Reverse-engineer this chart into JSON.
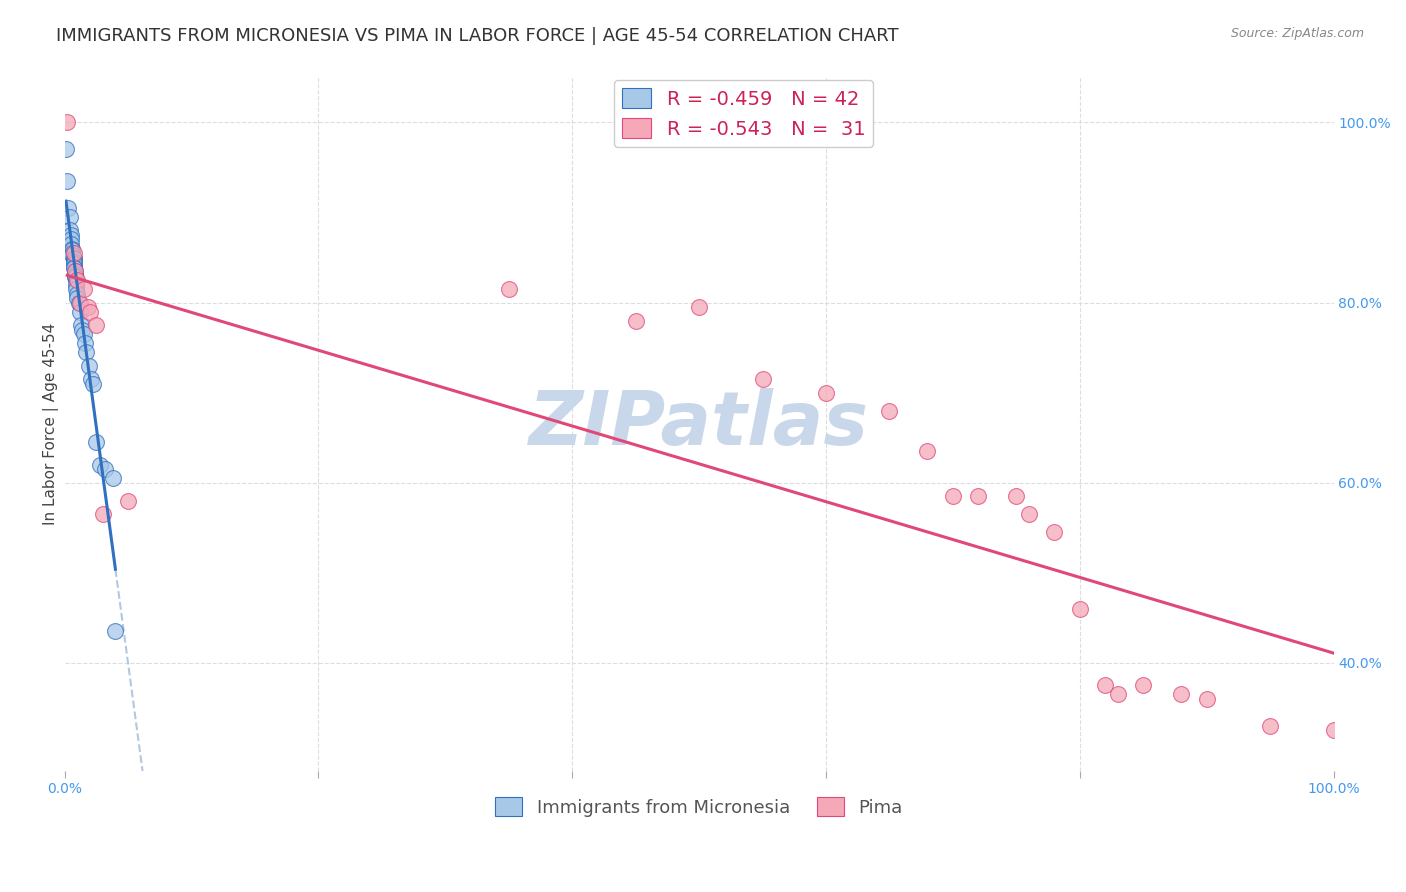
{
  "title": "IMMIGRANTS FROM MICRONESIA VS PIMA IN LABOR FORCE | AGE 45-54 CORRELATION CHART",
  "source": "Source: ZipAtlas.com",
  "ylabel": "In Labor Force | Age 45-54",
  "xlim": [
    0.0,
    1.0
  ],
  "ylim": [
    0.28,
    1.05
  ],
  "blue_color": "#a8c8e8",
  "pink_color": "#f4a8b8",
  "blue_line_color": "#3070c0",
  "pink_line_color": "#e04878",
  "blue_dots": [
    [
      0.001,
      0.97
    ],
    [
      0.002,
      0.935
    ],
    [
      0.003,
      0.905
    ],
    [
      0.004,
      0.895
    ],
    [
      0.004,
      0.88
    ],
    [
      0.005,
      0.875
    ],
    [
      0.005,
      0.87
    ],
    [
      0.005,
      0.865
    ],
    [
      0.006,
      0.86
    ],
    [
      0.006,
      0.858
    ],
    [
      0.006,
      0.855
    ],
    [
      0.006,
      0.853
    ],
    [
      0.007,
      0.85
    ],
    [
      0.007,
      0.848
    ],
    [
      0.007,
      0.845
    ],
    [
      0.007,
      0.843
    ],
    [
      0.007,
      0.84
    ],
    [
      0.007,
      0.838
    ],
    [
      0.008,
      0.835
    ],
    [
      0.008,
      0.832
    ],
    [
      0.008,
      0.83
    ],
    [
      0.008,
      0.828
    ],
    [
      0.009,
      0.825
    ],
    [
      0.009,
      0.82
    ],
    [
      0.009,
      0.815
    ],
    [
      0.01,
      0.81
    ],
    [
      0.01,
      0.805
    ],
    [
      0.011,
      0.8
    ],
    [
      0.012,
      0.79
    ],
    [
      0.013,
      0.775
    ],
    [
      0.014,
      0.77
    ],
    [
      0.015,
      0.765
    ],
    [
      0.016,
      0.755
    ],
    [
      0.017,
      0.745
    ],
    [
      0.019,
      0.73
    ],
    [
      0.021,
      0.715
    ],
    [
      0.022,
      0.71
    ],
    [
      0.025,
      0.645
    ],
    [
      0.028,
      0.62
    ],
    [
      0.032,
      0.615
    ],
    [
      0.038,
      0.605
    ],
    [
      0.04,
      0.435
    ]
  ],
  "pink_dots": [
    [
      0.002,
      1.0
    ],
    [
      0.007,
      0.855
    ],
    [
      0.008,
      0.835
    ],
    [
      0.01,
      0.825
    ],
    [
      0.012,
      0.8
    ],
    [
      0.015,
      0.815
    ],
    [
      0.018,
      0.795
    ],
    [
      0.02,
      0.79
    ],
    [
      0.025,
      0.775
    ],
    [
      0.03,
      0.565
    ],
    [
      0.05,
      0.58
    ],
    [
      0.35,
      0.815
    ],
    [
      0.45,
      0.78
    ],
    [
      0.5,
      0.795
    ],
    [
      0.55,
      0.715
    ],
    [
      0.6,
      0.7
    ],
    [
      0.65,
      0.68
    ],
    [
      0.68,
      0.635
    ],
    [
      0.7,
      0.585
    ],
    [
      0.72,
      0.585
    ],
    [
      0.75,
      0.585
    ],
    [
      0.76,
      0.565
    ],
    [
      0.78,
      0.545
    ],
    [
      0.8,
      0.46
    ],
    [
      0.82,
      0.375
    ],
    [
      0.83,
      0.365
    ],
    [
      0.85,
      0.375
    ],
    [
      0.88,
      0.365
    ],
    [
      0.9,
      0.36
    ],
    [
      0.95,
      0.33
    ],
    [
      1.0,
      0.325
    ]
  ],
  "background_color": "#ffffff",
  "grid_color": "#dddddd",
  "watermark": "ZIPatlas",
  "watermark_color": "#c8d8ea",
  "title_fontsize": 13,
  "axis_label_fontsize": 11,
  "tick_fontsize": 10,
  "legend_fontsize": 13
}
